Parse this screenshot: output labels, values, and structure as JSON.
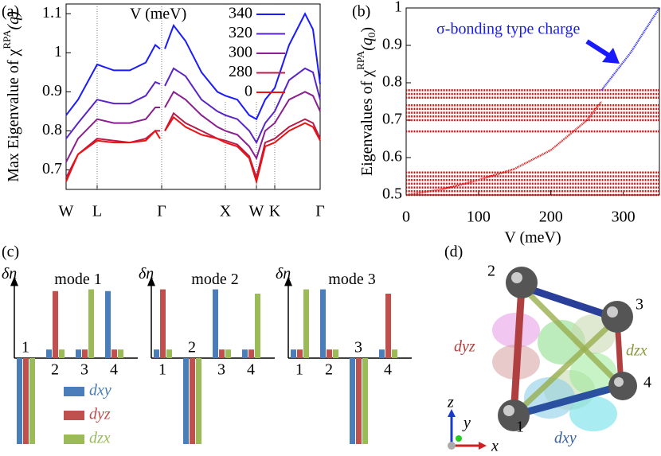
{
  "panel_labels": [
    "(a)",
    "(b)",
    "(c)",
    "(d)"
  ],
  "chart_data": [
    {
      "type": "line",
      "ylabel": [
        "Max Eigenvalue of χ",
        "RPA",
        "(q)"
      ],
      "x": [
        0,
        15,
        39,
        60,
        80,
        100,
        112,
        118,
        120,
        124,
        135,
        150,
        170,
        190,
        200,
        215,
        230,
        239,
        250,
        262,
        280,
        300,
        310,
        319
      ],
      "xlim": [
        0,
        319
      ],
      "xticks": [
        {
          "value": 0,
          "label": "W"
        },
        {
          "value": 39,
          "label": "L"
        },
        {
          "value": 120,
          "label": "Γ"
        },
        {
          "value": 200,
          "label": "X"
        },
        {
          "value": 239,
          "label": "W"
        },
        {
          "value": 262,
          "label": "K"
        },
        {
          "value": 319,
          "label": "Γ"
        }
      ],
      "ylim": [
        0.65,
        1.125
      ],
      "yticks": [
        0.7,
        0.8,
        0.9,
        1.0,
        1.1
      ],
      "legend_title": "V (meV)",
      "legend": "upper right",
      "series": [
        {
          "name": "340",
          "color": "#1a1aff",
          "values": [
            0.84,
            0.88,
            0.97,
            0.955,
            0.955,
            0.975,
            1.02,
            1.01,
            null,
            1.01,
            1.07,
            1.03,
            0.95,
            0.9,
            0.89,
            0.88,
            0.84,
            0.83,
            0.88,
            0.91,
            1.02,
            1.1,
            1.06,
            0.92
          ]
        },
        {
          "name": "320",
          "color": "#5a23c8",
          "values": [
            0.78,
            0.82,
            0.88,
            0.87,
            0.87,
            0.89,
            0.925,
            0.92,
            null,
            0.915,
            0.96,
            0.94,
            0.88,
            0.85,
            0.84,
            0.83,
            0.8,
            0.77,
            0.82,
            0.85,
            0.93,
            0.96,
            0.95,
            0.88
          ]
        },
        {
          "name": "300",
          "color": "#8a1f8f",
          "values": [
            0.72,
            0.78,
            0.83,
            0.82,
            0.82,
            0.83,
            0.86,
            0.86,
            null,
            0.86,
            0.9,
            0.88,
            0.84,
            0.81,
            0.8,
            0.79,
            0.76,
            0.73,
            0.8,
            0.82,
            0.88,
            0.9,
            0.89,
            0.85
          ]
        },
        {
          "name": "280",
          "color": "#b81c4a",
          "values": [
            0.68,
            0.74,
            0.78,
            0.775,
            0.77,
            0.78,
            0.8,
            0.8,
            null,
            0.8,
            0.845,
            0.82,
            0.8,
            0.78,
            0.775,
            0.765,
            0.735,
            0.68,
            0.77,
            0.78,
            0.81,
            0.83,
            0.82,
            0.78
          ]
        },
        {
          "name": "0",
          "color": "#ee1111",
          "values": [
            0.67,
            0.74,
            0.775,
            0.77,
            0.77,
            0.775,
            0.8,
            0.78,
            null,
            0.8,
            0.835,
            0.81,
            0.79,
            0.78,
            0.77,
            0.76,
            0.73,
            0.67,
            0.76,
            0.77,
            0.8,
            0.82,
            0.81,
            0.775
          ]
        }
      ]
    },
    {
      "type": "line",
      "ylabel": [
        "Eigenvalues of χ",
        "RPA",
        "(q",
        "0",
        ")"
      ],
      "xlabel": "V (meV)",
      "xlim": [
        0,
        350
      ],
      "xticks": [
        0,
        100,
        200,
        300
      ],
      "ylim": [
        0.5,
        1.0
      ],
      "yticks": [
        0.5,
        0.6,
        0.7,
        0.8,
        0.9,
        1.0
      ],
      "annotation": "σ-bonding type charge",
      "series": [
        {
          "color": "#e00000",
          "x": [
            0,
            350
          ],
          "values": [
            0.5,
            0.5
          ]
        },
        {
          "color": "#e00000",
          "x": [
            0,
            350
          ],
          "values": [
            0.51,
            0.51
          ]
        },
        {
          "color": "#e00000",
          "x": [
            0,
            350
          ],
          "values": [
            0.52,
            0.52
          ]
        },
        {
          "color": "#e00000",
          "x": [
            0,
            350
          ],
          "values": [
            0.53,
            0.53
          ]
        },
        {
          "color": "#e00000",
          "x": [
            0,
            350
          ],
          "values": [
            0.54,
            0.54
          ]
        },
        {
          "color": "#e00000",
          "x": [
            0,
            350
          ],
          "values": [
            0.55,
            0.55
          ]
        },
        {
          "color": "#e00000",
          "x": [
            0,
            350
          ],
          "values": [
            0.56,
            0.56
          ]
        },
        {
          "color": "#e00000",
          "x": [
            0,
            350
          ],
          "values": [
            0.67,
            0.67
          ]
        },
        {
          "color": "#e00000",
          "x": [
            0,
            350
          ],
          "values": [
            0.7,
            0.7
          ]
        },
        {
          "color": "#e00000",
          "x": [
            0,
            350
          ],
          "values": [
            0.71,
            0.71
          ]
        },
        {
          "color": "#e00000",
          "x": [
            0,
            350
          ],
          "values": [
            0.72,
            0.72
          ]
        },
        {
          "color": "#e00000",
          "x": [
            0,
            350
          ],
          "values": [
            0.73,
            0.73
          ]
        },
        {
          "color": "#e00000",
          "x": [
            0,
            350
          ],
          "values": [
            0.74,
            0.74
          ]
        },
        {
          "color": "#e00000",
          "x": [
            0,
            350
          ],
          "values": [
            0.76,
            0.76
          ]
        },
        {
          "color": "#e00000",
          "x": [
            0,
            350
          ],
          "values": [
            0.77,
            0.77
          ]
        },
        {
          "color": "#e00000",
          "x": [
            0,
            350
          ],
          "values": [
            0.78,
            0.78
          ]
        },
        {
          "color": "#e00000",
          "x": [
            0,
            50,
            100,
            150,
            200,
            250,
            270
          ],
          "values": [
            0.5,
            0.515,
            0.54,
            0.57,
            0.62,
            0.7,
            0.75
          ]
        },
        {
          "color": "#1a1aff",
          "x": [
            270,
            290,
            310,
            330,
            350
          ],
          "values": [
            0.78,
            0.83,
            0.88,
            0.94,
            1.0
          ]
        }
      ]
    },
    {
      "type": "bar",
      "title": "mode 1",
      "ylabel": "δn",
      "categories": [
        "1",
        "2",
        "3",
        "4"
      ],
      "ylim": [
        -1.1,
        0.95
      ],
      "legend": true,
      "series": [
        {
          "name": "dxy",
          "color": "#4a7ebb",
          "values": [
            -1,
            0.1,
            0.1,
            0.78
          ]
        },
        {
          "name": "dyz",
          "color": "#c0504d",
          "values": [
            -1,
            0.78,
            0.1,
            0.1
          ]
        },
        {
          "name": "dzx",
          "color": "#9bbb59",
          "values": [
            -1,
            0.1,
            0.8,
            0.1
          ]
        }
      ]
    },
    {
      "type": "bar",
      "title": "mode 2",
      "ylabel": "δn",
      "categories": [
        "1",
        "2",
        "3",
        "4"
      ],
      "ylim": [
        -1.1,
        0.95
      ],
      "legend": false,
      "series": [
        {
          "color": "#4a7ebb",
          "values": [
            0.1,
            -1,
            0.8,
            0.1
          ]
        },
        {
          "color": "#c0504d",
          "values": [
            0.8,
            -1,
            0.1,
            0.1
          ]
        },
        {
          "color": "#9bbb59",
          "values": [
            0.1,
            -1,
            0.1,
            0.75
          ]
        }
      ]
    },
    {
      "type": "bar",
      "title": "mode 3",
      "ylabel": "δn",
      "categories": [
        "1",
        "2",
        "3",
        "4"
      ],
      "ylim": [
        -1.1,
        0.95
      ],
      "legend": false,
      "series": [
        {
          "color": "#4a7ebb",
          "values": [
            0.1,
            0.8,
            -1,
            0.1
          ]
        },
        {
          "color": "#c0504d",
          "values": [
            0.1,
            0.1,
            -1,
            0.75
          ]
        },
        {
          "color": "#9bbb59",
          "values": [
            0.8,
            0.1,
            -1,
            0.1
          ]
        }
      ]
    }
  ],
  "diagram": {
    "sites": [
      "1",
      "2",
      "3",
      "4"
    ],
    "orbitals": [
      "dyz",
      "dzx",
      "dxy"
    ],
    "axes": [
      "x",
      "y",
      "z"
    ]
  }
}
